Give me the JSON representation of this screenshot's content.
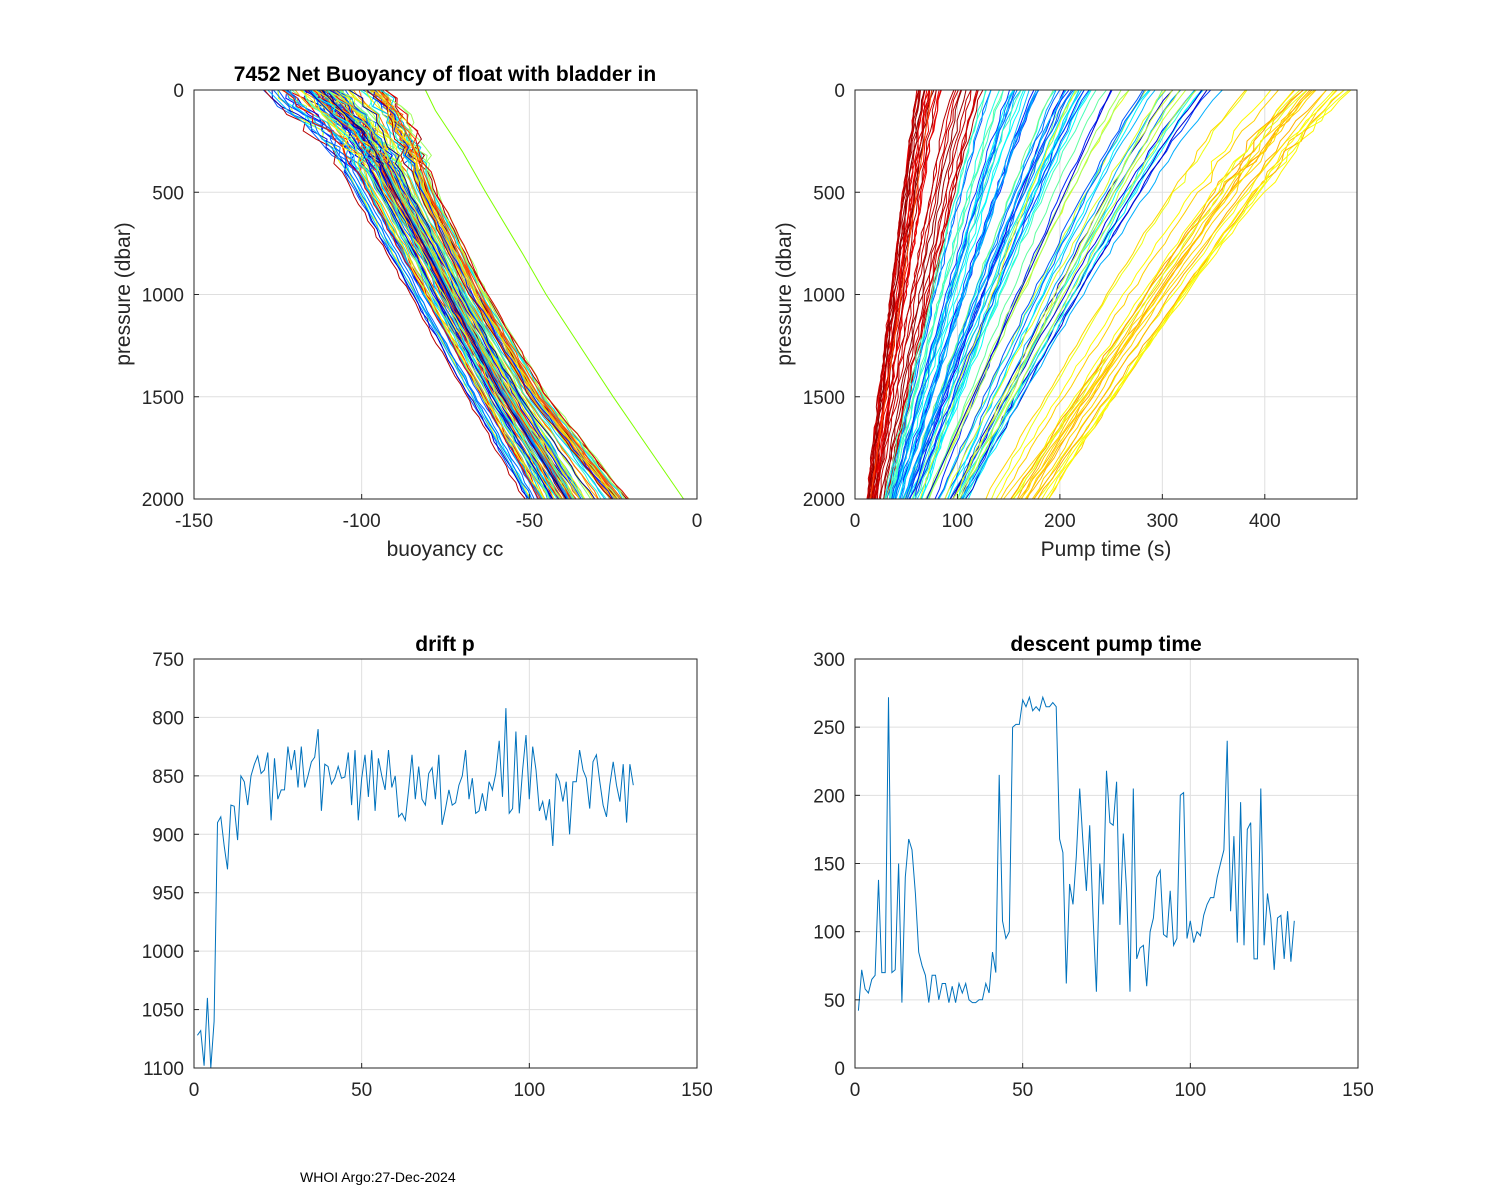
{
  "footer": "WHOI Argo:27-Dec-2024",
  "chart_data": [
    {
      "id": "buoyancy",
      "type": "line",
      "title": "7452 Net Buoyancy of float with bladder in",
      "xlabel": "buoyancy cc",
      "ylabel": "pressure (dbar)",
      "xlim": [
        -150,
        0
      ],
      "ylim": [
        0,
        2000
      ],
      "y_reversed": true,
      "xticks": [
        -150,
        -100,
        -50,
        0
      ],
      "yticks": [
        0,
        500,
        1000,
        1500,
        2000
      ],
      "grid": true,
      "series_description": "about 130 profiles (one per cycle), colored by cycle with a jet colormap",
      "profile_pressure": [
        0,
        100,
        200,
        300,
        500,
        800,
        1000,
        1500,
        2000
      ],
      "representative_profiles": [
        {
          "color": "#00bfff",
          "buoyancy": [
            -128,
            -122,
            -114,
            -108,
            -101,
            -91,
            -84,
            -67,
            -50
          ]
        },
        {
          "color": "#0000cd",
          "buoyancy": [
            -116,
            -110,
            -104,
            -100,
            -94,
            -84,
            -78,
            -61,
            -43
          ]
        },
        {
          "color": "#00008b",
          "buoyancy": [
            -112,
            -106,
            -100,
            -96,
            -90,
            -80,
            -74,
            -58,
            -39
          ]
        },
        {
          "color": "#7fff7f",
          "buoyancy": [
            -110,
            -104,
            -99,
            -95,
            -89,
            -79,
            -73,
            -56,
            -37
          ]
        },
        {
          "color": "#ffd700",
          "buoyancy": [
            -108,
            -102,
            -97,
            -93,
            -87,
            -77,
            -71,
            -54,
            -35
          ]
        },
        {
          "color": "#ff4500",
          "buoyancy": [
            -95,
            -90,
            -87,
            -84,
            -80,
            -71,
            -65,
            -47,
            -23
          ]
        },
        {
          "color": "#7fff00",
          "buoyancy": [
            -81,
            -78,
            -74,
            -70,
            -63,
            -52,
            -45,
            -25,
            -4
          ]
        }
      ]
    },
    {
      "id": "pumptime",
      "type": "line",
      "title": "",
      "xlabel": "Pump time (s)",
      "ylabel": "pressure (dbar)",
      "xlim": [
        0,
        490
      ],
      "ylim": [
        0,
        2000
      ],
      "y_reversed": true,
      "xticks": [
        0,
        100,
        200,
        300,
        400
      ],
      "yticks": [
        0,
        500,
        1000,
        1500,
        2000
      ],
      "grid": true,
      "series_description": "about 130 profiles of cumulative pump time versus pressure, colored by cycle with a jet colormap",
      "profile_pressure": [
        0,
        2000
      ],
      "representative_profiles": [
        {
          "color": "#ff4500",
          "pump_time": [
            75,
            15
          ]
        },
        {
          "color": "#00bfff",
          "pump_time": [
            170,
            40
          ]
        },
        {
          "color": "#0000cd",
          "pump_time": [
            250,
            70
          ]
        },
        {
          "color": "#7fff7f",
          "pump_time": [
            300,
            100
          ]
        },
        {
          "color": "#ffd700",
          "pump_time": [
            460,
            145
          ]
        }
      ]
    },
    {
      "id": "driftp",
      "type": "line",
      "title": "drift p",
      "xlabel": "",
      "ylabel": "",
      "xlim": [
        0,
        150
      ],
      "ylim": [
        750,
        1100
      ],
      "y_reversed": true,
      "xticks": [
        0,
        50,
        100,
        150
      ],
      "yticks": [
        750,
        800,
        850,
        900,
        950,
        1000,
        1050,
        1100
      ],
      "grid": true,
      "color": "#0072bd",
      "x": [
        1,
        2,
        3,
        4,
        5,
        6,
        7,
        8,
        9,
        10,
        11,
        12,
        13,
        14,
        15,
        16,
        17,
        18,
        19,
        20,
        21,
        22,
        23,
        24,
        25,
        26,
        27,
        28,
        29,
        30,
        31,
        32,
        33,
        34,
        35,
        36,
        37,
        38,
        39,
        40,
        41,
        42,
        43,
        44,
        45,
        46,
        47,
        48,
        49,
        50,
        51,
        52,
        53,
        54,
        55,
        56,
        57,
        58,
        59,
        60,
        61,
        62,
        63,
        64,
        65,
        66,
        67,
        68,
        69,
        70,
        71,
        72,
        73,
        74,
        75,
        76,
        77,
        78,
        79,
        80,
        81,
        82,
        83,
        84,
        85,
        86,
        87,
        88,
        89,
        90,
        91,
        92,
        93,
        94,
        95,
        96,
        97,
        98,
        99,
        100,
        101,
        102,
        103,
        104,
        105,
        106,
        107,
        108,
        109,
        110,
        111,
        112,
        113,
        114,
        115,
        116,
        117,
        118,
        119,
        120,
        121,
        122,
        123,
        124,
        125,
        126,
        127,
        128,
        129,
        130,
        131
      ],
      "values": [
        1072,
        1068,
        1098,
        1040,
        1100,
        1060,
        890,
        885,
        910,
        930,
        875,
        876,
        905,
        850,
        855,
        875,
        850,
        840,
        833,
        848,
        845,
        830,
        888,
        835,
        870,
        862,
        862,
        825,
        845,
        828,
        860,
        825,
        860,
        850,
        838,
        834,
        810,
        880,
        840,
        842,
        857,
        852,
        842,
        852,
        851,
        830,
        875,
        828,
        888,
        852,
        832,
        868,
        828,
        880,
        835,
        850,
        862,
        828,
        860,
        850,
        885,
        882,
        888,
        862,
        832,
        870,
        842,
        870,
        875,
        848,
        843,
        870,
        832,
        892,
        878,
        862,
        875,
        873,
        858,
        850,
        828,
        870,
        852,
        882,
        880,
        865,
        880,
        855,
        862,
        848,
        820,
        868,
        792,
        882,
        878,
        812,
        882,
        845,
        815,
        870,
        825,
        845,
        880,
        872,
        888,
        870,
        910,
        848,
        855,
        872,
        855,
        900,
        855,
        855,
        828,
        845,
        852,
        878,
        838,
        832,
        855,
        875,
        885,
        858,
        838,
        858,
        872,
        840,
        890,
        840,
        858
      ]
    },
    {
      "id": "descentpump",
      "type": "line",
      "title": "descent pump time",
      "xlabel": "",
      "ylabel": "",
      "xlim": [
        0,
        150
      ],
      "ylim": [
        0,
        300
      ],
      "y_reversed": false,
      "xticks": [
        0,
        50,
        100,
        150
      ],
      "yticks": [
        0,
        50,
        100,
        150,
        200,
        250,
        300
      ],
      "grid": true,
      "color": "#0072bd",
      "x": [
        1,
        2,
        3,
        4,
        5,
        6,
        7,
        8,
        9,
        10,
        11,
        12,
        13,
        14,
        15,
        16,
        17,
        18,
        19,
        20,
        21,
        22,
        23,
        24,
        25,
        26,
        27,
        28,
        29,
        30,
        31,
        32,
        33,
        34,
        35,
        36,
        37,
        38,
        39,
        40,
        41,
        42,
        43,
        44,
        45,
        46,
        47,
        48,
        49,
        50,
        51,
        52,
        53,
        54,
        55,
        56,
        57,
        58,
        59,
        60,
        61,
        62,
        63,
        64,
        65,
        66,
        67,
        68,
        69,
        70,
        71,
        72,
        73,
        74,
        75,
        76,
        77,
        78,
        79,
        80,
        81,
        82,
        83,
        84,
        85,
        86,
        87,
        88,
        89,
        90,
        91,
        92,
        93,
        94,
        95,
        96,
        97,
        98,
        99,
        100,
        101,
        102,
        103,
        104,
        105,
        106,
        107,
        108,
        109,
        110,
        111,
        112,
        113,
        114,
        115,
        116,
        117,
        118,
        119,
        120,
        121,
        122,
        123,
        124,
        125,
        126,
        127,
        128,
        129,
        130,
        131
      ],
      "values": [
        42,
        72,
        58,
        55,
        65,
        68,
        138,
        70,
        70,
        272,
        70,
        72,
        150,
        48,
        140,
        168,
        160,
        128,
        85,
        75,
        68,
        48,
        68,
        68,
        50,
        62,
        62,
        48,
        60,
        48,
        62,
        55,
        62,
        50,
        48,
        48,
        50,
        50,
        62,
        55,
        85,
        70,
        215,
        108,
        95,
        100,
        250,
        252,
        252,
        270,
        265,
        272,
        262,
        265,
        262,
        272,
        265,
        265,
        268,
        265,
        168,
        158,
        62,
        135,
        120,
        155,
        205,
        165,
        130,
        178,
        110,
        56,
        150,
        120,
        218,
        180,
        178,
        210,
        105,
        172,
        130,
        56,
        205,
        80,
        88,
        90,
        60,
        100,
        110,
        140,
        145,
        98,
        96,
        130,
        90,
        95,
        200,
        202,
        95,
        108,
        92,
        100,
        97,
        112,
        120,
        125,
        125,
        140,
        150,
        160,
        240,
        115,
        170,
        92,
        195,
        90,
        175,
        180,
        80,
        80,
        205,
        90,
        128,
        110,
        72,
        110,
        112,
        80,
        115,
        78,
        108
      ]
    }
  ]
}
